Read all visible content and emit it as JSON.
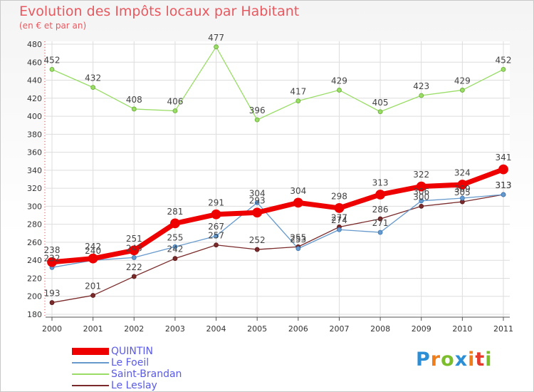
{
  "chart_data": {
    "type": "line",
    "title": "Evolution des Impôts locaux par Habitant",
    "subtitle": "(en € et par an)",
    "xlabel": "",
    "ylabel": "",
    "x": [
      "2000",
      "2001",
      "2002",
      "2003",
      "2004",
      "2005",
      "2006",
      "2007",
      "2008",
      "2009",
      "2010",
      "2011"
    ],
    "ylim": [
      180,
      480
    ],
    "yticks": [
      180,
      200,
      220,
      240,
      260,
      280,
      300,
      320,
      340,
      360,
      380,
      400,
      420,
      440,
      460,
      480
    ],
    "grid": true,
    "legend": "bottom-left",
    "series": [
      {
        "name": "QUINTIN",
        "color": "#ee0000",
        "values": [
          238,
          242,
          251,
          281,
          291,
          293,
          304,
          298,
          313,
          322,
          324,
          341
        ],
        "labels": [
          "238",
          "242",
          "251",
          "281",
          "291",
          "293",
          "304",
          "298",
          "313",
          "322",
          "324",
          "341"
        ]
      },
      {
        "name": "Le Foeil",
        "color": "#6699cc",
        "values": [
          232,
          240,
          243,
          255,
          267,
          304,
          253,
          274,
          271,
          306,
          309,
          313
        ],
        "labels": [
          "232",
          "240",
          "243",
          "255",
          "267",
          "304",
          "253",
          "274",
          "271",
          "306",
          "309",
          "313"
        ]
      },
      {
        "name": "Saint-Brandan",
        "color": "#99dd66",
        "values": [
          452,
          432,
          408,
          406,
          477,
          396,
          417,
          429,
          405,
          423,
          429,
          452
        ],
        "labels": [
          "452",
          "432",
          "408",
          "406",
          "477",
          "396",
          "417",
          "429",
          "405",
          "423",
          "429",
          "452"
        ]
      },
      {
        "name": "Le Leslay",
        "color": "#7a2a2a",
        "values": [
          193,
          201,
          222,
          242,
          257,
          252,
          255,
          277,
          286,
          300,
          305,
          313
        ],
        "labels": [
          "193",
          "201",
          "222",
          "242",
          "257",
          "252",
          "255",
          "277",
          "286",
          "300",
          "305",
          "313"
        ]
      }
    ]
  },
  "logo": {
    "letters": [
      "P",
      "r",
      "o",
      "x",
      "i",
      "t",
      "i"
    ],
    "colors": [
      "#2c8fd6",
      "#ef7d1a",
      "#7bbd2a",
      "#2c8fd6",
      "#ef7d1a",
      "#e43b2c",
      "#7bbd2a"
    ]
  }
}
